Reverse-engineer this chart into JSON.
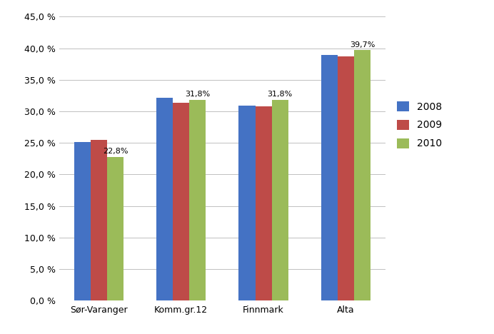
{
  "categories": [
    "Sør-Varanger",
    "Komm.gr.12",
    "Finnmark",
    "Alta"
  ],
  "series": {
    "2008": [
      25.1,
      32.1,
      30.9,
      38.9
    ],
    "2009": [
      25.5,
      31.4,
      30.8,
      38.7
    ],
    "2010": [
      22.8,
      31.8,
      31.8,
      39.7
    ]
  },
  "bar_colors": {
    "2008": "#4472C4",
    "2009": "#BE4B48",
    "2010": "#9BBB59"
  },
  "ylim": [
    0,
    45
  ],
  "yticks": [
    0,
    5,
    10,
    15,
    20,
    25,
    30,
    35,
    40,
    45
  ],
  "background_color": "#FFFFFF",
  "legend_labels": [
    "2008",
    "2009",
    "2010"
  ],
  "bar_width": 0.2,
  "annotation_fontsize": 8,
  "tick_fontsize": 9,
  "grid_color": "#C0C0C0"
}
